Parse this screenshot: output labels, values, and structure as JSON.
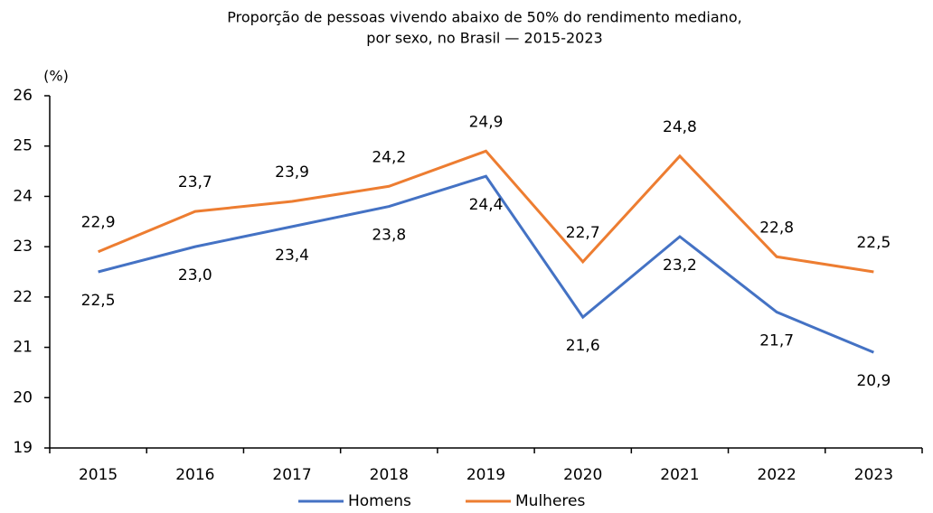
{
  "chart_data": {
    "type": "line",
    "title": [
      "Proporção de pessoas vivendo abaixo de 50% do rendimento mediano,",
      "por sexo, no Brasil — 2015-2023"
    ],
    "y_label": "(%)",
    "categories": [
      "2015",
      "2016",
      "2017",
      "2018",
      "2019",
      "2020",
      "2021",
      "2022",
      "2023"
    ],
    "series": [
      {
        "name": "Homens",
        "color": "#4472c4",
        "values": [
          22.5,
          23.0,
          23.4,
          23.8,
          24.4,
          21.6,
          23.2,
          21.7,
          20.9
        ],
        "value_labels": [
          "22,5",
          "23,0",
          "23,4",
          "23,8",
          "24,4",
          "21,6",
          "23,2",
          "21,7",
          "20,9"
        ]
      },
      {
        "name": "Mulheres",
        "color": "#ed7d31",
        "values": [
          22.9,
          23.7,
          23.9,
          24.2,
          24.9,
          22.7,
          24.8,
          22.8,
          22.5
        ],
        "value_labels": [
          "22,9",
          "23,7",
          "23,9",
          "24,2",
          "24,9",
          "22,7",
          "24,8",
          "22,8",
          "22,5"
        ]
      }
    ],
    "ylim": [
      19,
      26
    ],
    "yticks": [
      19,
      20,
      21,
      22,
      23,
      24,
      25,
      26
    ],
    "legend": "bottom"
  }
}
